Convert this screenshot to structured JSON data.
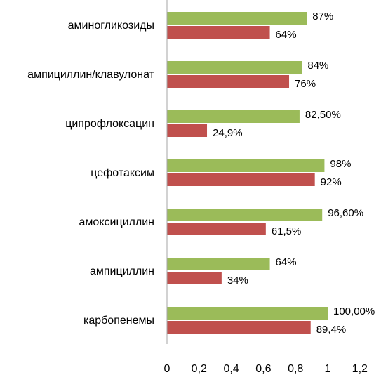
{
  "chart_data": {
    "type": "bar",
    "orientation": "horizontal",
    "categories": [
      "аминогликозиды",
      "ампициллин/клавулонат",
      "ципрофлоксацин",
      "цефотаксим",
      "амоксициллин",
      "ампициллин",
      "карбопенемы"
    ],
    "series": [
      {
        "color": "#9bbb59",
        "values": [
          0.87,
          0.84,
          0.825,
          0.98,
          0.966,
          0.64,
          1.0
        ],
        "labels": [
          "87%",
          "84%",
          "82,50%",
          "98%",
          "96,60%",
          "64%",
          "100,00%"
        ]
      },
      {
        "color": "#c0504d",
        "values": [
          0.64,
          0.76,
          0.249,
          0.92,
          0.615,
          0.34,
          0.894
        ],
        "labels": [
          "64%",
          "76%",
          "24,9%",
          "92%",
          "61,5%",
          "34%",
          "89,4%"
        ]
      }
    ],
    "xlim": [
      0,
      1.2
    ],
    "xticks": [
      "0",
      "0,2",
      "0,4",
      "0,6",
      "0,8",
      "1",
      "1,2"
    ],
    "xtick_values": [
      0,
      0.2,
      0.4,
      0.6,
      0.8,
      1.0,
      1.2
    ],
    "grid": false,
    "legend": "none"
  }
}
